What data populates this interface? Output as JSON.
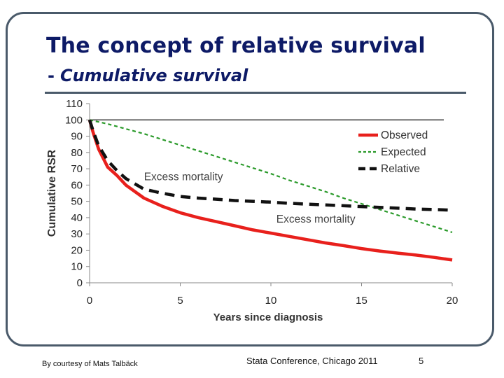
{
  "slide": {
    "title": "The concept of relative survival",
    "subtitle_dash": "-",
    "subtitle": "Cumulative survival"
  },
  "footer": {
    "credit": "By courtesy of Mats Talbäck",
    "conference": "Stata Conference, Chicago 2011",
    "page": "5"
  },
  "colors": {
    "observed": "#e8201c",
    "expected": "#2a9a2a",
    "relative": "#111111",
    "title": "#0d1a66",
    "frame": "#4a5a6a"
  },
  "chart_data": {
    "type": "line",
    "xlabel": "Years since diagnosis",
    "ylabel": "Cumulative RSR",
    "xlim": [
      0,
      20
    ],
    "ylim": [
      0,
      110
    ],
    "x_ticks": [
      0,
      5,
      10,
      15,
      20
    ],
    "y_ticks": [
      0,
      10,
      20,
      30,
      40,
      50,
      60,
      70,
      80,
      90,
      100,
      110
    ],
    "reference_line": 100,
    "legend_position": "right",
    "series": [
      {
        "name": "Observed",
        "style": "solid",
        "color": "#e8201c",
        "x": [
          0,
          0.2,
          0.5,
          1,
          1.5,
          2,
          3,
          4,
          5,
          6,
          7,
          8,
          9,
          10,
          11,
          12,
          13,
          14,
          15,
          16,
          17,
          18,
          19,
          20
        ],
        "values": [
          100,
          92,
          82,
          71,
          66,
          60,
          52,
          47,
          43,
          40,
          37.5,
          35,
          32.5,
          30.5,
          28.5,
          26.5,
          24.5,
          22.8,
          21,
          19.5,
          18.2,
          17,
          15.6,
          14
        ]
      },
      {
        "name": "Expected",
        "style": "dashed",
        "color": "#2a9a2a",
        "x": [
          0,
          1,
          2,
          3,
          4,
          5,
          6,
          7,
          8,
          9,
          10,
          11,
          12,
          13,
          14,
          15,
          16,
          17,
          18,
          19,
          20
        ],
        "values": [
          100,
          97.5,
          94.5,
          91.5,
          88,
          84.5,
          81,
          77.5,
          74,
          70.5,
          67,
          63,
          59.5,
          56,
          52,
          48.5,
          45,
          41.5,
          38,
          34.5,
          31
        ]
      },
      {
        "name": "Relative",
        "style": "dashed",
        "color": "#111111",
        "x": [
          0,
          0.2,
          0.5,
          1,
          1.5,
          2,
          3,
          4,
          5,
          6,
          7,
          8,
          9,
          10,
          11,
          12,
          13,
          14,
          15,
          16,
          17,
          18,
          19,
          20
        ],
        "values": [
          100,
          93,
          84,
          75,
          69,
          64,
          57.5,
          55,
          53,
          52,
          51.3,
          50.5,
          50,
          49.5,
          48.8,
          48.3,
          47.8,
          47.3,
          46.8,
          46.3,
          45.8,
          45.3,
          45,
          44.6
        ]
      }
    ],
    "annotations": [
      {
        "text": "Excess mortality",
        "x": 3,
        "y": 63
      },
      {
        "text": "Excess mortality",
        "x": 10.3,
        "y": 37
      }
    ]
  }
}
